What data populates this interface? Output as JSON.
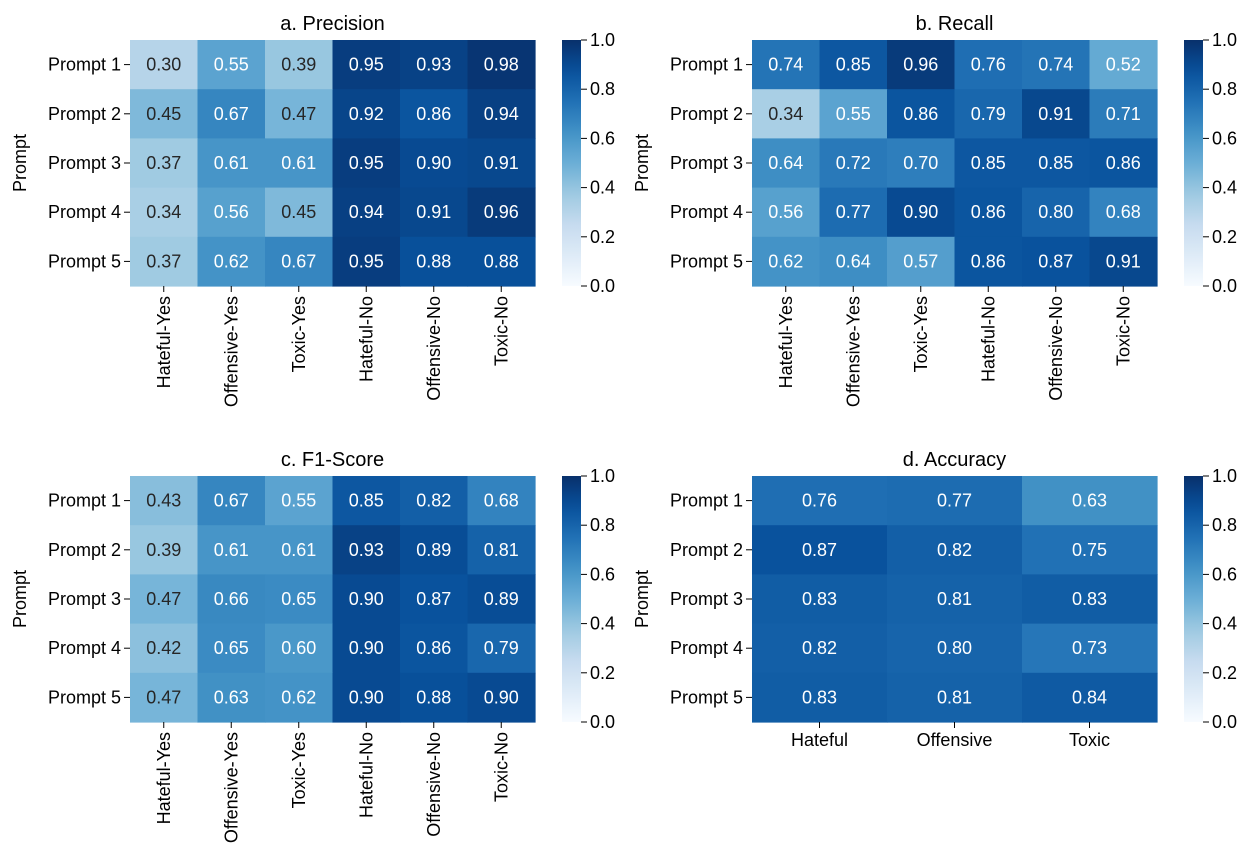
{
  "chart_data": [
    {
      "type": "heatmap",
      "title": "a. Precision",
      "ylabel": "Prompt",
      "rows": [
        "Prompt 1",
        "Prompt 2",
        "Prompt 3",
        "Prompt 4",
        "Prompt 5"
      ],
      "columns": [
        "Hateful-Yes",
        "Offensive-Yes",
        "Toxic-Yes",
        "Hateful-No",
        "Offensive-No",
        "Toxic-No"
      ],
      "values": [
        [
          0.3,
          0.55,
          0.39,
          0.95,
          0.93,
          0.98
        ],
        [
          0.45,
          0.67,
          0.47,
          0.92,
          0.86,
          0.94
        ],
        [
          0.37,
          0.61,
          0.61,
          0.95,
          0.9,
          0.91
        ],
        [
          0.34,
          0.56,
          0.45,
          0.94,
          0.91,
          0.96
        ],
        [
          0.37,
          0.62,
          0.67,
          0.95,
          0.88,
          0.88
        ]
      ],
      "colorbar": {
        "range": [
          0.0,
          1.0
        ],
        "ticks": [
          "0.0",
          "0.2",
          "0.4",
          "0.6",
          "0.8",
          "1.0"
        ],
        "colormap": "Blues"
      }
    },
    {
      "type": "heatmap",
      "title": "b. Recall",
      "ylabel": "Prompt",
      "rows": [
        "Prompt 1",
        "Prompt 2",
        "Prompt 3",
        "Prompt 4",
        "Prompt 5"
      ],
      "columns": [
        "Hateful-Yes",
        "Offensive-Yes",
        "Toxic-Yes",
        "Hateful-No",
        "Offensive-No",
        "Toxic-No"
      ],
      "values": [
        [
          0.74,
          0.85,
          0.96,
          0.76,
          0.74,
          0.52
        ],
        [
          0.34,
          0.55,
          0.86,
          0.79,
          0.91,
          0.71
        ],
        [
          0.64,
          0.72,
          0.7,
          0.85,
          0.85,
          0.86
        ],
        [
          0.56,
          0.77,
          0.9,
          0.86,
          0.8,
          0.68
        ],
        [
          0.62,
          0.64,
          0.57,
          0.86,
          0.87,
          0.91
        ]
      ],
      "colorbar": {
        "range": [
          0.0,
          1.0
        ],
        "ticks": [
          "0.0",
          "0.2",
          "0.4",
          "0.6",
          "0.8",
          "1.0"
        ],
        "colormap": "Blues"
      }
    },
    {
      "type": "heatmap",
      "title": "c. F1-Score",
      "ylabel": "Prompt",
      "rows": [
        "Prompt 1",
        "Prompt 2",
        "Prompt 3",
        "Prompt 4",
        "Prompt 5"
      ],
      "columns": [
        "Hateful-Yes",
        "Offensive-Yes",
        "Toxic-Yes",
        "Hateful-No",
        "Offensive-No",
        "Toxic-No"
      ],
      "values": [
        [
          0.43,
          0.67,
          0.55,
          0.85,
          0.82,
          0.68
        ],
        [
          0.39,
          0.61,
          0.61,
          0.93,
          0.89,
          0.81
        ],
        [
          0.47,
          0.66,
          0.65,
          0.9,
          0.87,
          0.89
        ],
        [
          0.42,
          0.65,
          0.6,
          0.9,
          0.86,
          0.79
        ],
        [
          0.47,
          0.63,
          0.62,
          0.9,
          0.88,
          0.9
        ]
      ],
      "colorbar": {
        "range": [
          0.0,
          1.0
        ],
        "ticks": [
          "0.0",
          "0.2",
          "0.4",
          "0.6",
          "0.8",
          "1.0"
        ],
        "colormap": "Blues"
      }
    },
    {
      "type": "heatmap",
      "title": "d. Accuracy",
      "ylabel": "Prompt",
      "rows": [
        "Prompt 1",
        "Prompt 2",
        "Prompt 3",
        "Prompt 4",
        "Prompt 5"
      ],
      "columns": [
        "Hateful",
        "Offensive",
        "Toxic"
      ],
      "values": [
        [
          0.76,
          0.77,
          0.63
        ],
        [
          0.87,
          0.82,
          0.75
        ],
        [
          0.83,
          0.81,
          0.83
        ],
        [
          0.82,
          0.8,
          0.73
        ],
        [
          0.83,
          0.81,
          0.84
        ]
      ],
      "colorbar": {
        "range": [
          0.0,
          1.0
        ],
        "ticks": [
          "0.0",
          "0.2",
          "0.4",
          "0.6",
          "0.8",
          "1.0"
        ],
        "colormap": "Blues"
      }
    }
  ]
}
